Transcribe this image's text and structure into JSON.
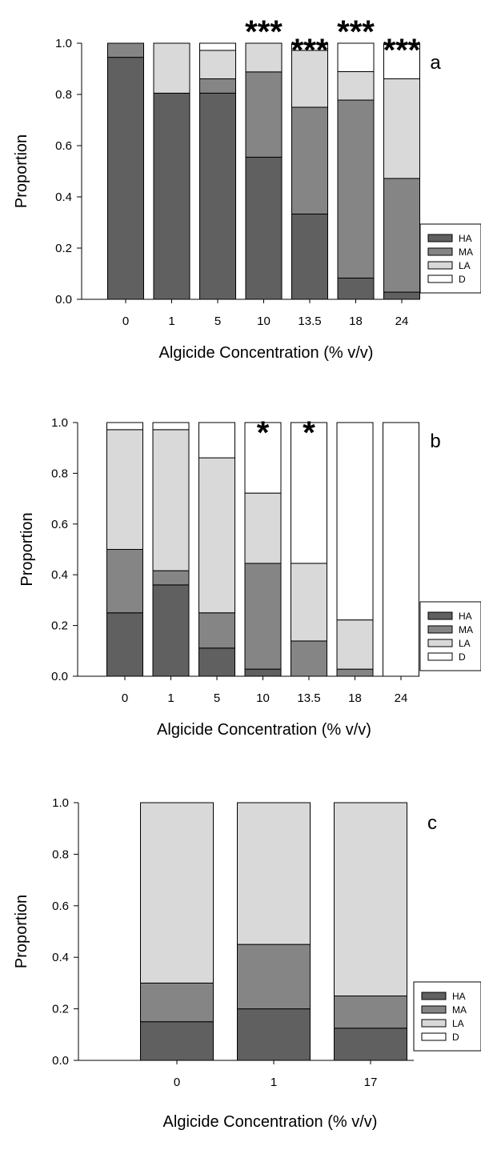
{
  "chart_data": [
    {
      "type": "bar",
      "stacked": true,
      "panel_letter": "a",
      "xlabel": "Algicide Concentration (% v/v)",
      "ylabel": "Proportion",
      "ylim": [
        0,
        1
      ],
      "yticks": [
        "0.0",
        "0.2",
        "0.4",
        "0.6",
        "0.8",
        "1.0"
      ],
      "categories": [
        "0",
        "1",
        "5",
        "10",
        "13.5",
        "18",
        "24"
      ],
      "series": [
        {
          "name": "HA",
          "color": "#606060",
          "values": [
            0.945,
            0.805,
            0.805,
            0.555,
            0.333,
            0.083,
            0.028
          ]
        },
        {
          "name": "MA",
          "color": "#858585",
          "values": [
            0.055,
            0.0,
            0.056,
            0.333,
            0.417,
            0.695,
            0.444
          ]
        },
        {
          "name": "LA",
          "color": "#d9d9d9",
          "values": [
            0.0,
            0.195,
            0.111,
            0.112,
            0.222,
            0.111,
            0.389
          ]
        },
        {
          "name": "D",
          "color": "#ffffff",
          "values": [
            0.0,
            0.0,
            0.028,
            0.0,
            0.028,
            0.111,
            0.139
          ]
        }
      ],
      "significance": [
        "",
        "",
        "",
        "***",
        "***",
        "***",
        "***"
      ],
      "legend": "bottom-right"
    },
    {
      "type": "bar",
      "stacked": true,
      "panel_letter": "b",
      "xlabel": "Algicide Concentration (% v/v)",
      "ylabel": "Proportion",
      "ylim": [
        0,
        1
      ],
      "yticks": [
        "0.0",
        "0.2",
        "0.4",
        "0.6",
        "0.8",
        "1.0"
      ],
      "categories": [
        "0",
        "1",
        "5",
        "10",
        "13.5",
        "18",
        "24"
      ],
      "series": [
        {
          "name": "HA",
          "color": "#606060",
          "values": [
            0.25,
            0.36,
            0.111,
            0.028,
            0.0,
            0.0,
            0.0
          ]
        },
        {
          "name": "MA",
          "color": "#858585",
          "values": [
            0.25,
            0.056,
            0.139,
            0.417,
            0.139,
            0.028,
            0.0
          ]
        },
        {
          "name": "LA",
          "color": "#d9d9d9",
          "values": [
            0.472,
            0.556,
            0.611,
            0.277,
            0.306,
            0.194,
            0.0
          ]
        },
        {
          "name": "D",
          "color": "#ffffff",
          "values": [
            0.028,
            0.028,
            0.139,
            0.278,
            0.555,
            0.778,
            1.0
          ]
        }
      ],
      "significance": [
        "",
        "",
        "",
        "*",
        "*",
        "",
        ""
      ],
      "legend": "bottom-right"
    },
    {
      "type": "bar",
      "stacked": true,
      "panel_letter": "c",
      "xlabel": "Algicide Concentration (% v/v)",
      "ylabel": "Proportion",
      "ylim": [
        0,
        1
      ],
      "yticks": [
        "0.0",
        "0.2",
        "0.4",
        "0.6",
        "0.8",
        "1.0"
      ],
      "categories": [
        "0",
        "1",
        "17"
      ],
      "series": [
        {
          "name": "HA",
          "color": "#606060",
          "values": [
            0.15,
            0.2,
            0.125
          ]
        },
        {
          "name": "MA",
          "color": "#858585",
          "values": [
            0.15,
            0.25,
            0.125
          ]
        },
        {
          "name": "LA",
          "color": "#d9d9d9",
          "values": [
            0.7,
            0.55,
            0.75
          ]
        },
        {
          "name": "D",
          "color": "#ffffff",
          "values": [
            0.0,
            0.0,
            0.0
          ]
        }
      ],
      "significance": [
        "",
        "",
        ""
      ],
      "legend": "bottom-right"
    }
  ]
}
